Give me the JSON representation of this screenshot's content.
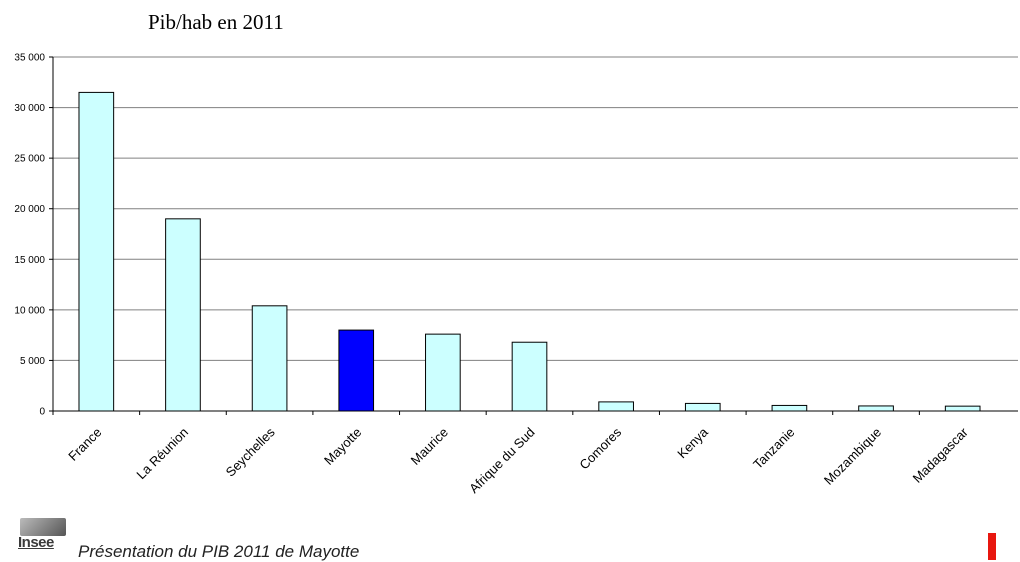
{
  "chart_data": {
    "type": "bar",
    "title": "Pib/hab en 2011",
    "xlabel": "",
    "ylabel": "",
    "ylim": [
      0,
      35000
    ],
    "yticks": [
      0,
      5000,
      10000,
      15000,
      20000,
      25000,
      30000,
      35000
    ],
    "ytick_labels": [
      "0",
      "5 000",
      "10 000",
      "15 000",
      "20 000",
      "25 000",
      "30 000",
      "35 000"
    ],
    "grid": true,
    "categories": [
      "France",
      "La Réunion",
      "Seychelles",
      "Mayotte",
      "Maurice",
      "Afrique du Sud",
      "Comores",
      "Kenya",
      "Tanzanie",
      "Mozambique",
      "Madagascar"
    ],
    "values": [
      31500,
      19000,
      10400,
      8000,
      7600,
      6800,
      900,
      750,
      550,
      500,
      480
    ],
    "colors": {
      "default_bar": "#ccffff",
      "highlight_bar": "#0000ff",
      "bar_outline": "#000000",
      "gridline": "#808080"
    },
    "highlight_category": "Mayotte"
  },
  "footer": {
    "logo_text": "Insee",
    "caption": "Présentation du PIB 2011 de Mayotte",
    "accent_color": "#e8170f"
  }
}
